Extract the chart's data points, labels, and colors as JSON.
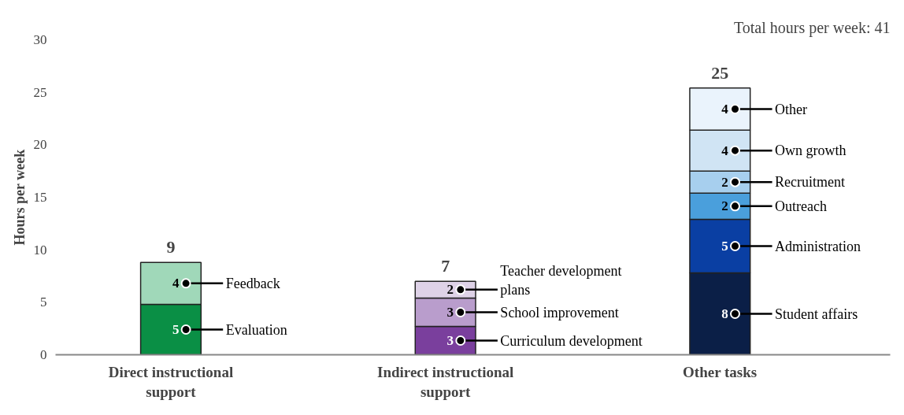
{
  "chart_data": {
    "type": "bar",
    "stacked": true,
    "ylabel": "Hours per week",
    "ylim": [
      0,
      30
    ],
    "yticks": [
      0,
      5,
      10,
      15,
      20,
      25,
      30
    ],
    "grid": false,
    "categories": [
      "Direct instructional support",
      "Indirect instructional support",
      "Other tasks"
    ],
    "series": [
      {
        "name": "Evaluation",
        "color": "#0a8f45",
        "values": [
          4.8,
          null,
          null
        ],
        "value_labels": [
          "5",
          null,
          null
        ]
      },
      {
        "name": "Feedback",
        "color": "#a0d8b9",
        "values": [
          4.0,
          null,
          null
        ],
        "value_labels": [
          "4",
          null,
          null
        ]
      },
      {
        "name": "Curriculum development",
        "color": "#7a3f9d",
        "values": [
          null,
          2.7,
          null
        ],
        "value_labels": [
          null,
          "3",
          null
        ]
      },
      {
        "name": "School improvement",
        "color": "#b99dcc",
        "values": [
          null,
          2.7,
          null
        ],
        "value_labels": [
          null,
          "3",
          null
        ]
      },
      {
        "name": "Teacher development plans",
        "color": "#ded2e7",
        "values": [
          null,
          1.6,
          null
        ],
        "value_labels": [
          null,
          "2",
          null
        ]
      },
      {
        "name": "Student affairs",
        "color": "#0b1f47",
        "values": [
          null,
          null,
          7.8
        ],
        "value_labels": [
          null,
          null,
          "8"
        ]
      },
      {
        "name": "Administration",
        "color": "#0a3fa3",
        "values": [
          null,
          null,
          5.1
        ],
        "value_labels": [
          null,
          null,
          "5"
        ]
      },
      {
        "name": "Outreach",
        "color": "#4a9fdc",
        "values": [
          null,
          null,
          2.5
        ],
        "value_labels": [
          null,
          null,
          "2"
        ]
      },
      {
        "name": "Recruitment",
        "color": "#a7cfee",
        "values": [
          null,
          null,
          2.1
        ],
        "value_labels": [
          null,
          null,
          "2"
        ]
      },
      {
        "name": "Own growth",
        "color": "#d0e4f4",
        "values": [
          null,
          null,
          3.9
        ],
        "value_labels": [
          null,
          null,
          "4"
        ]
      },
      {
        "name": "Other",
        "color": "#eaf3fc",
        "values": [
          null,
          null,
          4.0
        ],
        "value_labels": [
          null,
          null,
          "4"
        ]
      }
    ],
    "totals": [
      "9",
      "7",
      "25"
    ],
    "annotations": [
      "Total hours per week: 41"
    ]
  }
}
